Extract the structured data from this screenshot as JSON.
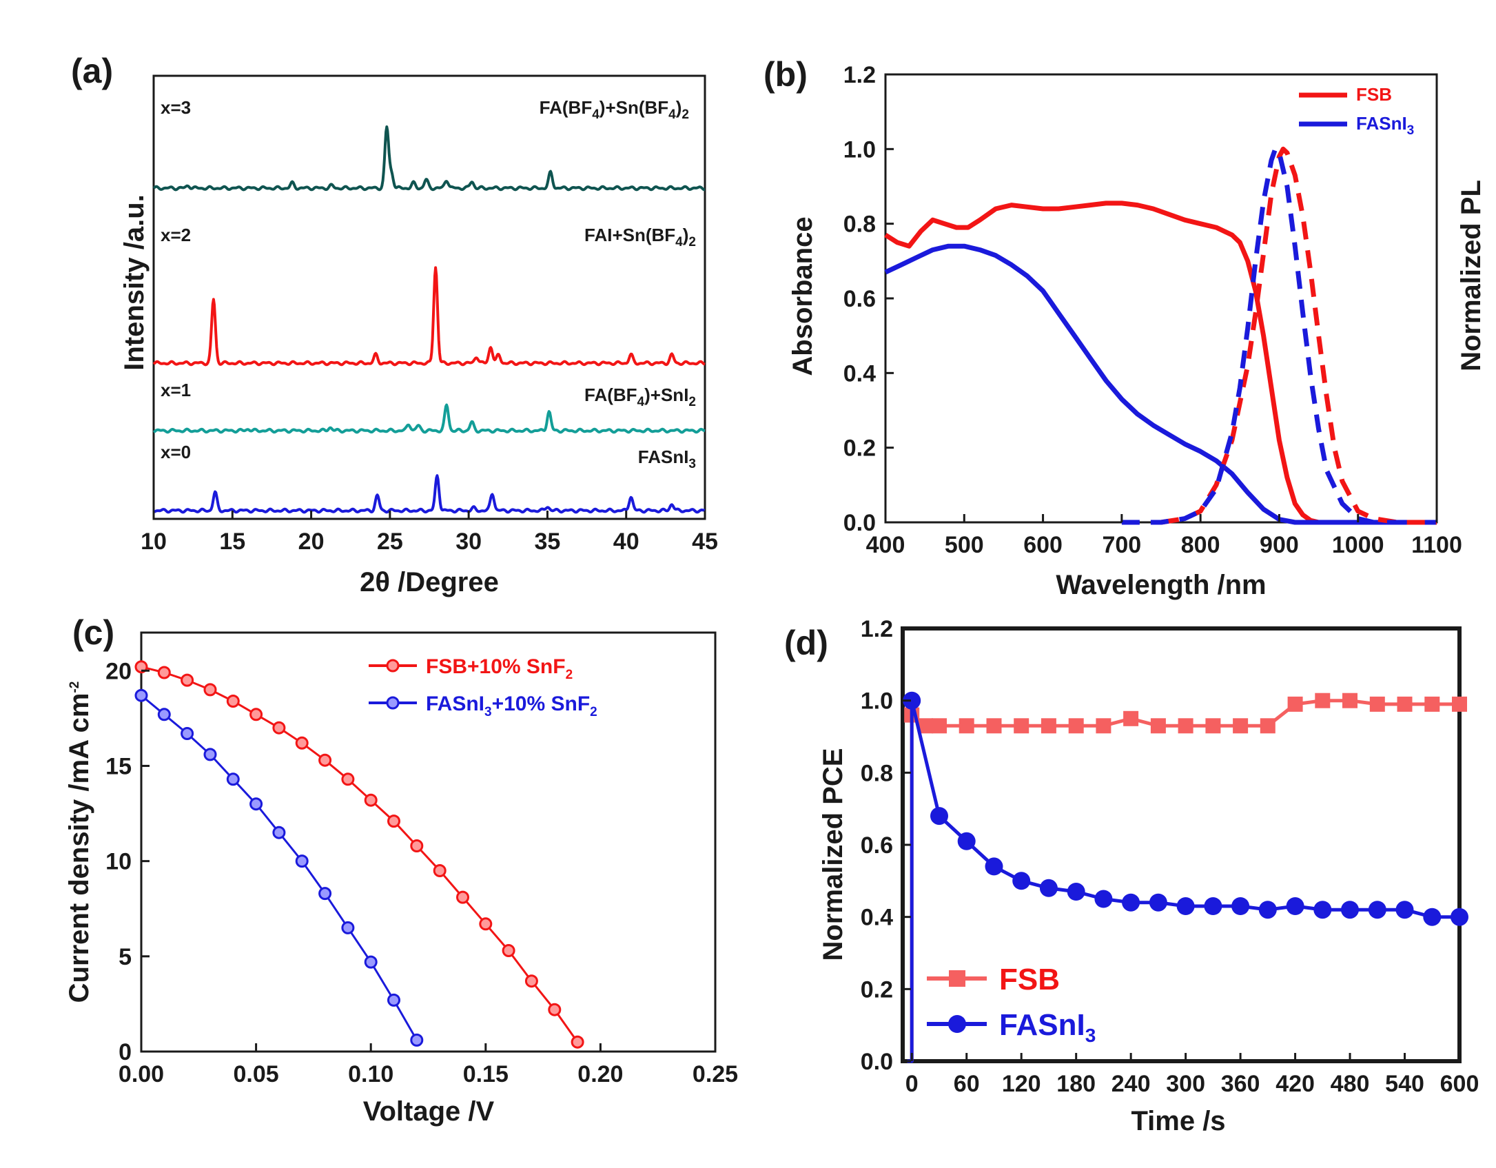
{
  "chart_data": [
    {
      "panel": "(a)",
      "type": "line",
      "xlabel": "2θ /Degree",
      "ylabel": "Intensity /a.u.",
      "xlim": [
        10,
        45
      ],
      "xticks": [
        "10",
        "15",
        "20",
        "25",
        "30",
        "35",
        "40",
        "45"
      ],
      "series": [
        {
          "name": "x=0",
          "label": "FASnI",
          "label_sub": "3",
          "color": "#1a1adb",
          "peaks": [
            [
              13.9,
              0.22
            ],
            [
              24.2,
              0.18
            ],
            [
              28.0,
              0.42
            ],
            [
              31.5,
              0.21
            ],
            [
              35.0,
              0.05
            ],
            [
              40.3,
              0.17
            ],
            [
              42.9,
              0.08
            ],
            [
              30.3,
              0.03
            ]
          ]
        },
        {
          "name": "x=1",
          "label": "FA(BF4)+SnI",
          "label_sub": "2",
          "color": "#139e98",
          "peaks": [
            [
              21.2,
              0.04
            ],
            [
              26.2,
              0.08
            ],
            [
              26.8,
              0.06
            ],
            [
              28.6,
              0.31
            ],
            [
              30.2,
              0.1
            ],
            [
              35.1,
              0.23
            ],
            [
              16.0,
              0.02
            ]
          ]
        },
        {
          "name": "x=2",
          "label": "FAI+Sn(BF4)",
          "label_sub": "2",
          "color": "#f21515",
          "peaks": [
            [
              13.8,
              0.77
            ],
            [
              24.1,
              0.1
            ],
            [
              27.9,
              1.16
            ],
            [
              30.5,
              0.08
            ],
            [
              31.4,
              0.2
            ],
            [
              31.9,
              0.1
            ],
            [
              40.3,
              0.1
            ],
            [
              42.9,
              0.1
            ]
          ]
        },
        {
          "name": "x=3",
          "label": "FA(BF4)+Sn(BF4)",
          "label_sub": "2",
          "color": "#0f5450",
          "peaks": [
            [
              12.2,
              0.03
            ],
            [
              18.8,
              0.06
            ],
            [
              21.3,
              0.03
            ],
            [
              24.8,
              0.73
            ],
            [
              25.1,
              0.18
            ],
            [
              26.5,
              0.06
            ],
            [
              27.3,
              0.1
            ],
            [
              28.6,
              0.1
            ],
            [
              30.2,
              0.08
            ],
            [
              35.2,
              0.19
            ]
          ]
        }
      ]
    },
    {
      "panel": "(b)",
      "type": "line",
      "xlabel": "Wavelength /nm",
      "ylabel": "Absorbance",
      "y2label": "Normalized PL",
      "xlim": [
        400,
        1100
      ],
      "ylim": [
        0,
        1.2
      ],
      "xticks": [
        "400",
        "500",
        "600",
        "700",
        "800",
        "900",
        "1000",
        "1100"
      ],
      "yticks": [
        "0.0",
        "0.2",
        "0.4",
        "0.6",
        "0.8",
        "1.0",
        "1.2"
      ],
      "legend": [
        {
          "label": "FSB",
          "sub": "",
          "color": "#f21515"
        },
        {
          "label": "FASnI",
          "sub": "3",
          "color": "#1a1adb"
        }
      ],
      "series": [
        {
          "name": "FSB absorbance",
          "color": "#f21515",
          "style": "solid",
          "x": [
            400,
            415,
            430,
            445,
            460,
            475,
            490,
            505,
            520,
            540,
            560,
            580,
            600,
            620,
            640,
            660,
            680,
            700,
            720,
            740,
            760,
            780,
            800,
            820,
            840,
            850,
            860,
            870,
            880,
            890,
            900,
            910,
            920,
            930,
            940,
            950,
            970,
            1000,
            1050,
            1100
          ],
          "y": [
            0.77,
            0.75,
            0.74,
            0.78,
            0.81,
            0.8,
            0.79,
            0.79,
            0.81,
            0.84,
            0.85,
            0.845,
            0.84,
            0.84,
            0.845,
            0.85,
            0.855,
            0.855,
            0.85,
            0.84,
            0.825,
            0.81,
            0.8,
            0.79,
            0.77,
            0.75,
            0.7,
            0.62,
            0.5,
            0.36,
            0.22,
            0.12,
            0.05,
            0.02,
            0.005,
            0.0,
            0.0,
            0.0,
            0.0,
            0.0
          ]
        },
        {
          "name": "FASnI3 absorbance",
          "color": "#1a1adb",
          "style": "solid",
          "x": [
            400,
            420,
            440,
            460,
            480,
            500,
            520,
            540,
            560,
            580,
            600,
            620,
            640,
            660,
            680,
            700,
            720,
            740,
            760,
            780,
            800,
            820,
            840,
            860,
            880,
            900,
            920,
            950,
            1000,
            1100
          ],
          "y": [
            0.67,
            0.69,
            0.71,
            0.73,
            0.74,
            0.74,
            0.73,
            0.715,
            0.69,
            0.66,
            0.62,
            0.56,
            0.5,
            0.44,
            0.38,
            0.33,
            0.29,
            0.26,
            0.235,
            0.21,
            0.19,
            0.165,
            0.13,
            0.08,
            0.035,
            0.008,
            0.0,
            0.0,
            0.0,
            0.0
          ]
        },
        {
          "name": "FSB PL",
          "color": "#f21515",
          "style": "dashed",
          "x": [
            750,
            780,
            800,
            820,
            840,
            860,
            870,
            880,
            890,
            900,
            905,
            910,
            920,
            930,
            940,
            950,
            960,
            970,
            980,
            1000,
            1020,
            1050,
            1100
          ],
          "y": [
            0.0,
            0.01,
            0.03,
            0.1,
            0.22,
            0.42,
            0.56,
            0.72,
            0.88,
            0.98,
            1.0,
            0.99,
            0.93,
            0.82,
            0.67,
            0.5,
            0.34,
            0.2,
            0.11,
            0.03,
            0.01,
            0.0,
            0.0
          ]
        },
        {
          "name": "FASnI3 PL",
          "color": "#1a1adb",
          "style": "dashed",
          "x": [
            700,
            750,
            780,
            800,
            820,
            840,
            850,
            860,
            870,
            880,
            890,
            895,
            900,
            910,
            920,
            930,
            940,
            950,
            960,
            980,
            1000,
            1020,
            1050
          ],
          "y": [
            0.0,
            0.0,
            0.01,
            0.03,
            0.09,
            0.24,
            0.36,
            0.52,
            0.7,
            0.86,
            0.97,
            1.0,
            0.99,
            0.9,
            0.74,
            0.56,
            0.39,
            0.25,
            0.14,
            0.05,
            0.01,
            0.0,
            0.0
          ]
        }
      ]
    },
    {
      "panel": "(c)",
      "type": "line",
      "xlabel": "Voltage /V",
      "ylabel": "Current density /mA cm",
      "ylabel_sup": "-2",
      "xlim": [
        0,
        0.25
      ],
      "ylim": [
        0,
        22
      ],
      "xticks": [
        "0.00",
        "0.05",
        "0.10",
        "0.15",
        "0.20",
        "0.25"
      ],
      "yticks": [
        "0",
        "5",
        "10",
        "15",
        "20"
      ],
      "legend": [
        {
          "label": "FSB+10% SnF",
          "sub": "2",
          "color": "#f21515"
        },
        {
          "label": "FASnI",
          "mid_sub": "3",
          "rest": "+10% SnF",
          "sub": "2",
          "color": "#1a1adb"
        }
      ],
      "series": [
        {
          "name": "FSB+10% SnF2",
          "color": "#f21515",
          "x": [
            0.0,
            0.01,
            0.02,
            0.03,
            0.04,
            0.05,
            0.06,
            0.07,
            0.08,
            0.09,
            0.1,
            0.11,
            0.12,
            0.13,
            0.14,
            0.15,
            0.16,
            0.17,
            0.18,
            0.19
          ],
          "y": [
            20.2,
            19.9,
            19.5,
            19.0,
            18.4,
            17.7,
            17.0,
            16.2,
            15.3,
            14.3,
            13.2,
            12.1,
            10.8,
            9.5,
            8.1,
            6.7,
            5.3,
            3.7,
            2.2,
            0.5
          ]
        },
        {
          "name": "FASnI3+10% SnF2",
          "color": "#1a1adb",
          "x": [
            0.0,
            0.01,
            0.02,
            0.03,
            0.04,
            0.05,
            0.06,
            0.07,
            0.08,
            0.09,
            0.1,
            0.11,
            0.12
          ],
          "y": [
            18.7,
            17.7,
            16.7,
            15.6,
            14.3,
            13.0,
            11.5,
            10.0,
            8.3,
            6.5,
            4.7,
            2.7,
            0.6
          ]
        }
      ]
    },
    {
      "panel": "(d)",
      "type": "line",
      "xlabel": "Time /s",
      "ylabel": "Normalized PCE",
      "xlim": [
        -10,
        600
      ],
      "ylim": [
        0,
        1.2
      ],
      "xticks": [
        "0",
        "60",
        "120",
        "180",
        "240",
        "300",
        "360",
        "420",
        "480",
        "540",
        "600"
      ],
      "yticks": [
        "0.0",
        "0.2",
        "0.4",
        "0.6",
        "0.8",
        "1.0",
        "1.2"
      ],
      "legend": [
        {
          "label": "FSB",
          "sub": "",
          "color": "#f21515",
          "marker": "square"
        },
        {
          "label": "FASnI",
          "sub": "3",
          "color": "#1a1adb",
          "marker": "circle"
        }
      ],
      "series": [
        {
          "name": "FSB",
          "color": "#f21515",
          "marker": "square",
          "x": [
            -5,
            0,
            0,
            15,
            30,
            60,
            90,
            120,
            150,
            180,
            210,
            240,
            270,
            300,
            330,
            360,
            390,
            420,
            450,
            480,
            510,
            540,
            570,
            600
          ],
          "y": [
            0.0,
            0.0,
            0.96,
            0.93,
            0.93,
            0.93,
            0.93,
            0.93,
            0.93,
            0.93,
            0.93,
            0.95,
            0.93,
            0.93,
            0.93,
            0.93,
            0.93,
            0.99,
            1.0,
            1.0,
            0.99,
            0.99,
            0.99,
            0.99
          ]
        },
        {
          "name": "FASnI3",
          "color": "#1a1adb",
          "marker": "circle",
          "x": [
            -5,
            0,
            0,
            30,
            60,
            90,
            120,
            150,
            180,
            210,
            240,
            270,
            300,
            330,
            360,
            390,
            420,
            450,
            480,
            510,
            540,
            570,
            600
          ],
          "y": [
            0.0,
            0.0,
            1.0,
            0.68,
            0.61,
            0.54,
            0.5,
            0.48,
            0.47,
            0.45,
            0.44,
            0.44,
            0.43,
            0.43,
            0.43,
            0.42,
            0.43,
            0.42,
            0.42,
            0.42,
            0.42,
            0.4,
            0.4
          ]
        }
      ]
    }
  ]
}
